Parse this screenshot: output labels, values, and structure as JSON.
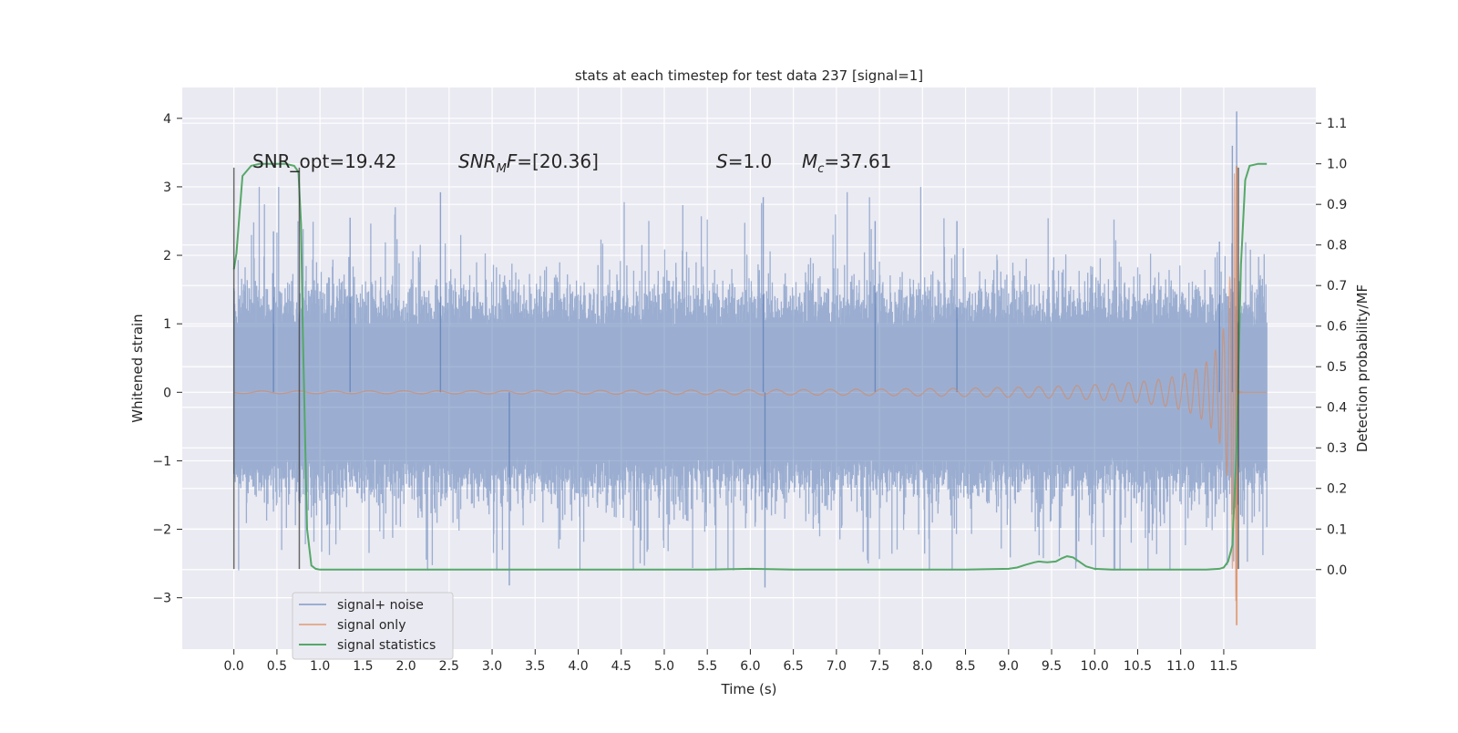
{
  "chart_data": {
    "type": "line",
    "title": "stats at each timestep for test data 237 [signal=1]",
    "xlabel": "Time (s)",
    "ylabel": "Whitened strain",
    "ylabel_right": "Detection probability/MF",
    "x_ticks": [
      "0.0",
      "0.5",
      "1.0",
      "1.5",
      "2.0",
      "2.5",
      "3.0",
      "3.5",
      "4.0",
      "4.5",
      "5.0",
      "5.5",
      "6.0",
      "6.5",
      "7.0",
      "7.5",
      "8.0",
      "8.5",
      "9.0",
      "9.5",
      "10.0",
      "10.5",
      "11.0",
      "11.5"
    ],
    "y_ticks": [
      "4",
      "3",
      "2",
      "1",
      "0",
      "−1",
      "−2",
      "−3"
    ],
    "y2_ticks": [
      "1.1",
      "1.0",
      "0.9",
      "0.8",
      "0.7",
      "0.6",
      "0.5",
      "0.4",
      "0.3",
      "0.2",
      "0.1",
      "0.0"
    ],
    "xlim": [
      -0.6,
      12.57
    ],
    "ylim": [
      -3.75,
      4.45
    ],
    "y2lim": [
      -0.196,
      1.188
    ],
    "grid": true,
    "legend_position": "lower-left",
    "annotations": [
      {
        "id": "snr_opt",
        "text": "SNR_opt=19.42"
      },
      {
        "id": "snr_mf",
        "text": "SNR_MF=[20.36]"
      },
      {
        "id": "s",
        "text": "S=1.0"
      },
      {
        "id": "mc",
        "text": "M_c=37.61"
      }
    ],
    "vlines": [
      {
        "x": 0.0,
        "ymin": -2.58,
        "ymax": 3.28
      },
      {
        "x": 0.76,
        "ymin": -2.58,
        "ymax": 3.28
      },
      {
        "x": 11.67,
        "ymin": -2.58,
        "ymax": 3.28
      }
    ],
    "series": [
      {
        "name": "signal+ noise",
        "color": "#4c72b0",
        "kind": "noise",
        "x_range": [
          0.0,
          12.0
        ],
        "envelope_typical": 1.0,
        "max": 4.1,
        "min": -2.85
      },
      {
        "name": "signal only",
        "color": "#dd8452",
        "kind": "chirp",
        "x_range": [
          0.0,
          12.0
        ],
        "merger_time": 11.65,
        "peak": 3.3,
        "trough": -3.4
      },
      {
        "name": "signal statistics",
        "color": "#55a868",
        "kind": "line",
        "axis": "right",
        "x": [
          0.0,
          0.03,
          0.1,
          0.2,
          0.3,
          0.4,
          0.5,
          0.6,
          0.7,
          0.75,
          0.78,
          0.8,
          0.85,
          0.9,
          0.95,
          1.0,
          2.0,
          3.0,
          4.0,
          5.0,
          5.5,
          6.0,
          6.5,
          7.0,
          8.0,
          8.5,
          9.0,
          9.1,
          9.2,
          9.3,
          9.35,
          9.45,
          9.55,
          9.62,
          9.68,
          9.75,
          9.82,
          9.9,
          10.0,
          10.2,
          10.5,
          11.0,
          11.3,
          11.45,
          11.5,
          11.55,
          11.6,
          11.65,
          11.7,
          11.75,
          11.8,
          11.9,
          12.0
        ],
        "values": [
          0.74,
          0.78,
          0.97,
          0.995,
          1.0,
          1.0,
          1.0,
          1.0,
          0.995,
          0.98,
          0.85,
          0.6,
          0.1,
          0.01,
          0.002,
          0.0,
          0.0,
          0.0,
          0.0,
          0.0,
          0.0,
          0.002,
          0.0,
          0.0,
          0.0,
          0.0,
          0.002,
          0.005,
          0.012,
          0.018,
          0.02,
          0.018,
          0.02,
          0.028,
          0.033,
          0.03,
          0.02,
          0.008,
          0.002,
          0.0,
          0.0,
          0.0,
          0.0,
          0.002,
          0.005,
          0.02,
          0.06,
          0.3,
          0.75,
          0.96,
          0.995,
          1.0,
          1.0
        ]
      }
    ]
  }
}
